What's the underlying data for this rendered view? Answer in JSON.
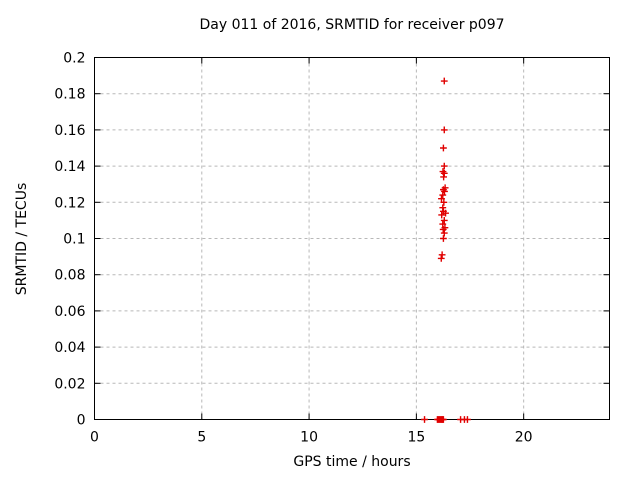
{
  "chart_data": {
    "type": "scatter",
    "title": "Day 011 of 2016, SRMTID for receiver p097",
    "xlabel": "GPS time / hours",
    "ylabel": "SRMTID / TECUs",
    "xlim": [
      0,
      24
    ],
    "ylim": [
      0,
      0.2
    ],
    "grid": true,
    "legend": "none",
    "grid_color": "#b8b8b8",
    "axis_color": "#000000",
    "background_color": "#ffffff",
    "marker": "plus-cross",
    "marker_color": "#e00000",
    "xticks": [
      {
        "v": 0,
        "label": "0"
      },
      {
        "v": 5,
        "label": "5"
      },
      {
        "v": 10,
        "label": "10"
      },
      {
        "v": 15,
        "label": "15"
      },
      {
        "v": 20,
        "label": "20"
      }
    ],
    "yticks": [
      {
        "v": 0,
        "label": "0"
      },
      {
        "v": 0.02,
        "label": "0.02"
      },
      {
        "v": 0.04,
        "label": "0.04"
      },
      {
        "v": 0.06,
        "label": "0.06"
      },
      {
        "v": 0.08,
        "label": "0.08"
      },
      {
        "v": 0.1,
        "label": "0.1"
      },
      {
        "v": 0.12,
        "label": "0.12"
      },
      {
        "v": 0.14,
        "label": "0.14"
      },
      {
        "v": 0.16,
        "label": "0.16"
      },
      {
        "v": 0.18,
        "label": "0.18"
      },
      {
        "v": 0.2,
        "label": "0.2"
      }
    ],
    "series": [
      {
        "name": "SRMTID",
        "points": [
          [
            16.3,
            0.187
          ],
          [
            16.3,
            0.16
          ],
          [
            16.26,
            0.15
          ],
          [
            16.3,
            0.14
          ],
          [
            16.24,
            0.137
          ],
          [
            16.3,
            0.136
          ],
          [
            16.27,
            0.134
          ],
          [
            16.34,
            0.128
          ],
          [
            16.26,
            0.127
          ],
          [
            16.31,
            0.126
          ],
          [
            16.23,
            0.124
          ],
          [
            16.17,
            0.122
          ],
          [
            16.28,
            0.12
          ],
          [
            16.23,
            0.117
          ],
          [
            16.26,
            0.115
          ],
          [
            16.36,
            0.114
          ],
          [
            16.18,
            0.113
          ],
          [
            16.3,
            0.11
          ],
          [
            16.23,
            0.108
          ],
          [
            16.33,
            0.106
          ],
          [
            16.25,
            0.105
          ],
          [
            16.3,
            0.103
          ],
          [
            16.26,
            0.1
          ],
          [
            16.2,
            0.091
          ],
          [
            16.16,
            0.089
          ],
          [
            15.38,
            0
          ],
          [
            15.98,
            0
          ],
          [
            16.03,
            0
          ],
          [
            16.08,
            0
          ],
          [
            16.13,
            0
          ],
          [
            16.18,
            0
          ],
          [
            16.22,
            0
          ],
          [
            16.26,
            0
          ],
          [
            17.06,
            0
          ],
          [
            17.24,
            0
          ],
          [
            17.38,
            0
          ]
        ]
      }
    ]
  }
}
